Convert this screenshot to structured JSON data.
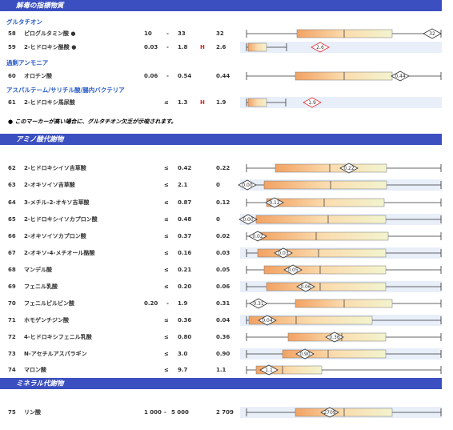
{
  "sections": [
    {
      "title": "解毒の指標物質",
      "groups": [
        {
          "title": "グルタチオン",
          "rows": [
            {
              "no": "58",
              "name": "ピログルタミン酸 ●",
              "low": "10",
              "sep": "-",
              "high": "33",
              "value": "32",
              "marker": "32"
            },
            {
              "no": "59",
              "name": "2-ヒドロキシ酪酸 ●",
              "low": "0.03",
              "sep": "-",
              "high": "1.8",
              "flag": "H",
              "value": "2.6",
              "marker": "2.6"
            }
          ]
        },
        {
          "title": "過剰アンモニア",
          "rows": [
            {
              "no": "60",
              "name": "オロチン酸",
              "low": "0.06",
              "sep": "-",
              "high": "0.54",
              "value": "0.44",
              "marker": "0.44"
            }
          ]
        },
        {
          "title": "アスパルテーム/サリチル酸/腸内バクテリア",
          "rows": [
            {
              "no": "61",
              "name": "2-ヒドロキシ馬尿酸",
              "sep": "≤",
              "high": "1.3",
              "flag": "H",
              "value": "1.9",
              "marker": "1.9"
            }
          ]
        }
      ],
      "note": "●  このマーカーが高い場合に、グルタチオン欠乏が示唆されます。"
    },
    {
      "title": "アミノ酸代謝物",
      "groups": [
        {
          "rows": [
            {
              "no": "62",
              "name": "2-ヒドロキシイソ吉草酸",
              "sep": "≤",
              "high": "0.42",
              "value": "0.22",
              "marker": "0.22"
            },
            {
              "no": "63",
              "name": "2-オキソイソ吉草酸",
              "sep": "≤",
              "high": "2.1",
              "value": "0",
              "marker": "0.00"
            },
            {
              "no": "64",
              "name": "3-メチル-2-オキソ吉草酸",
              "sep": "≤",
              "high": "0.87",
              "value": "0.12",
              "marker": "0.12"
            },
            {
              "no": "65",
              "name": "2-ヒドロキシイソカプロン酸",
              "sep": "≤",
              "high": "0.48",
              "value": "0",
              "marker": "0.00"
            },
            {
              "no": "66",
              "name": "2-オキソイソカプロン酸",
              "sep": "≤",
              "high": "0.37",
              "value": "0.02",
              "marker": "0.02"
            },
            {
              "no": "67",
              "name": "2-オキソ-4-メチオール酪酸",
              "sep": "≤",
              "high": "0.16",
              "value": "0.03",
              "marker": "0.03"
            },
            {
              "no": "68",
              "name": "マンデル酸",
              "sep": "≤",
              "high": "0.21",
              "value": "0.05",
              "marker": "0.05"
            },
            {
              "no": "69",
              "name": "フェニル乳酸",
              "sep": "≤",
              "high": "0.20",
              "value": "0.06",
              "marker": "0.06"
            },
            {
              "no": "70",
              "name": "フェニルピルビン酸",
              "low": "0.20",
              "sep": "-",
              "high": "1.9",
              "value": "0.31",
              "marker": "0.31"
            },
            {
              "no": "71",
              "name": "ホモゲンチジン酸",
              "sep": "≤",
              "high": "0.36",
              "value": "0.04",
              "marker": "0.04"
            },
            {
              "no": "72",
              "name": "4-ヒドロキシフェニル乳酸",
              "sep": "≤",
              "high": "0.80",
              "value": "0.36",
              "marker": "0.36"
            },
            {
              "no": "73",
              "name": "N-アセチルアスパラギン",
              "sep": "≤",
              "high": "3.0",
              "value": "0.90",
              "marker": "0.90"
            },
            {
              "no": "74",
              "name": "マロン酸",
              "sep": "≤",
              "high": "9.7",
              "value": "1.1",
              "marker": "1.1"
            }
          ]
        }
      ]
    },
    {
      "title": "ミネラル代謝物",
      "groups": [
        {
          "rows": [
            {
              "no": "75",
              "name": "リン酸",
              "low": "1 000",
              "sep": "-",
              "high": "5 000",
              "value": "2 709",
              "marker": "2709"
            }
          ]
        }
      ]
    }
  ]
}
